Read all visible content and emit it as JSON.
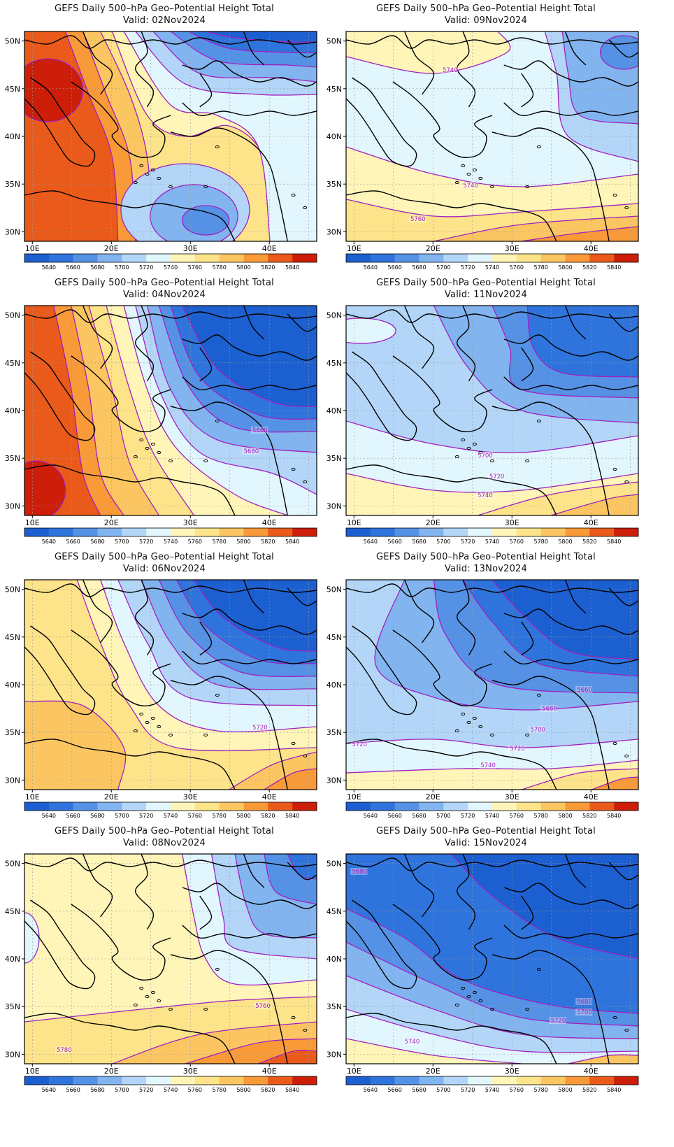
{
  "panels": [
    {
      "title": "GEFS Daily 500–hPa Geo–Potential Height Total",
      "valid": "Valid: 02Nov2024",
      "contour_labels": []
    },
    {
      "title": "GEFS Daily 500–hPa Geo–Potential Height Total",
      "valid": "Valid: 09Nov2024",
      "contour_labels": [
        "5740",
        "5740",
        "5760"
      ]
    },
    {
      "title": "GEFS Daily 500–hPa Geo–Potential Height Total",
      "valid": "Valid: 04Nov2024",
      "contour_labels": [
        "5660",
        "5680"
      ]
    },
    {
      "title": "GEFS Daily 500–hPa Geo–Potential Height Total",
      "valid": "Valid: 11Nov2024",
      "contour_labels": [
        "5700",
        "5720",
        "5740"
      ]
    },
    {
      "title": "GEFS Daily 500–hPa Geo–Potential Height Total",
      "valid": "Valid: 06Nov2024",
      "contour_labels": [
        "5720"
      ]
    },
    {
      "title": "GEFS Daily 500–hPa Geo–Potential Height Total",
      "valid": "Valid: 13Nov2024",
      "contour_labels": [
        "5660",
        "5680",
        "5700",
        "5720",
        "5720",
        "5740"
      ]
    },
    {
      "title": "GEFS Daily 500–hPa Geo–Potential Height Total",
      "valid": "Valid: 08Nov2024",
      "contour_labels": [
        "5760",
        "5780"
      ]
    },
    {
      "title": "GEFS Daily 500–hPa Geo–Potential Height Total",
      "valid": "Valid: 15Nov2024",
      "contour_labels": [
        "5680",
        "5680",
        "5700",
        "5720",
        "5740"
      ]
    }
  ],
  "lat_labels": [
    "50N",
    "45N",
    "40N",
    "35N",
    "30N"
  ],
  "lon_labels": [
    "10E",
    "20E",
    "30E",
    "40E"
  ],
  "colorbar": {
    "levels": [
      "5640",
      "5660",
      "5680",
      "5700",
      "5720",
      "5740",
      "5760",
      "5780",
      "5800",
      "5820",
      "5840"
    ],
    "colors": [
      "#1c5fd0",
      "#2e74dc",
      "#5592e6",
      "#82b4f0",
      "#b3d6f8",
      "#e2f6fd",
      "#fff5b8",
      "#fde48a",
      "#fbc662",
      "#f89a38",
      "#ea5a1a",
      "#cc1e08"
    ]
  },
  "contour_line_color": "#a020c0"
}
